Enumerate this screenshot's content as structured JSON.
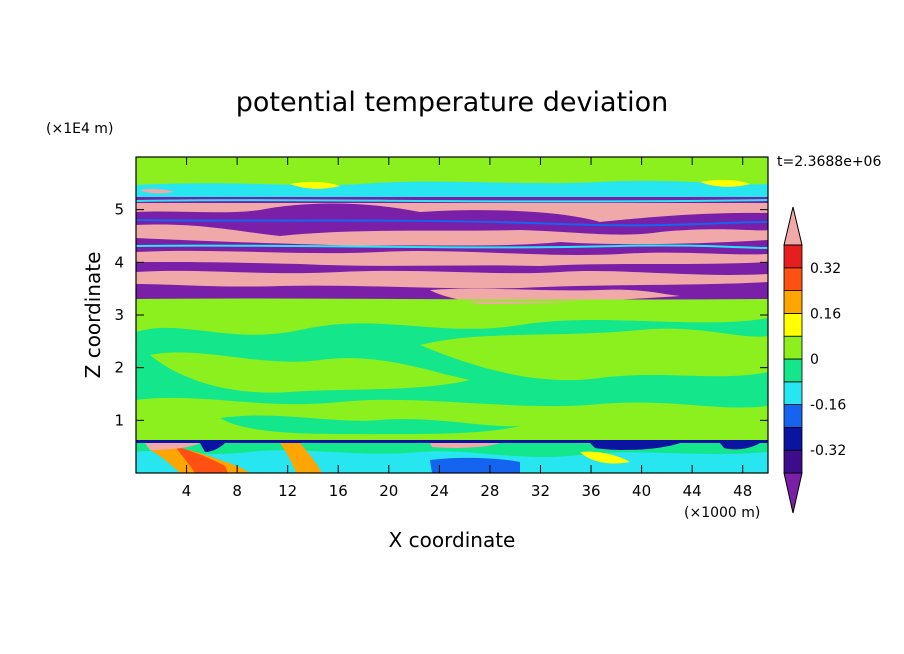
{
  "chart_data": {
    "type": "heatmap",
    "title": "potential temperature deviation",
    "time_label": "t=2.3688e+06",
    "xlabel": "X coordinate",
    "ylabel": "Z coordinate",
    "x_unit": "(×1000 m)",
    "y_unit": "(×1E4 m)",
    "xlim": [
      0,
      50
    ],
    "ylim": [
      0,
      6
    ],
    "x_ticks": [
      4,
      8,
      12,
      16,
      20,
      24,
      28,
      32,
      36,
      40,
      44,
      48
    ],
    "y_ticks": [
      1,
      2,
      3,
      4,
      5
    ],
    "colorbar": {
      "levels": [
        -0.4,
        -0.32,
        -0.24,
        -0.16,
        -0.08,
        0,
        0.08,
        0.16,
        0.24,
        0.32,
        0.4
      ],
      "labels": [
        "0.32",
        "0.16",
        "0",
        "-0.16",
        "-0.32"
      ],
      "label_values": [
        0.32,
        0.16,
        0,
        -0.16,
        -0.32
      ],
      "colors": [
        "#7a1fa8",
        "#3c0c8c",
        "#0a14a0",
        "#1464f0",
        "#28e6f0",
        "#14e68c",
        "#8cf01e",
        "#ffff00",
        "#ffa500",
        "#ff5014",
        "#e61e1e",
        "#f0a8a8"
      ],
      "extend": "both"
    },
    "bands": [
      {
        "z0": 0.0,
        "z1": 0.6,
        "level": "mixed: -0.24 to 0.4"
      },
      {
        "z0": 0.6,
        "z1": 3.3,
        "level": "-0.08 to 0.08"
      },
      {
        "z0": 3.3,
        "z1": 5.3,
        "level": "alternating -0.4 and 0.4"
      },
      {
        "z0": 5.3,
        "z1": 6.0,
        "level": "-0.08 to 0.08"
      }
    ]
  }
}
